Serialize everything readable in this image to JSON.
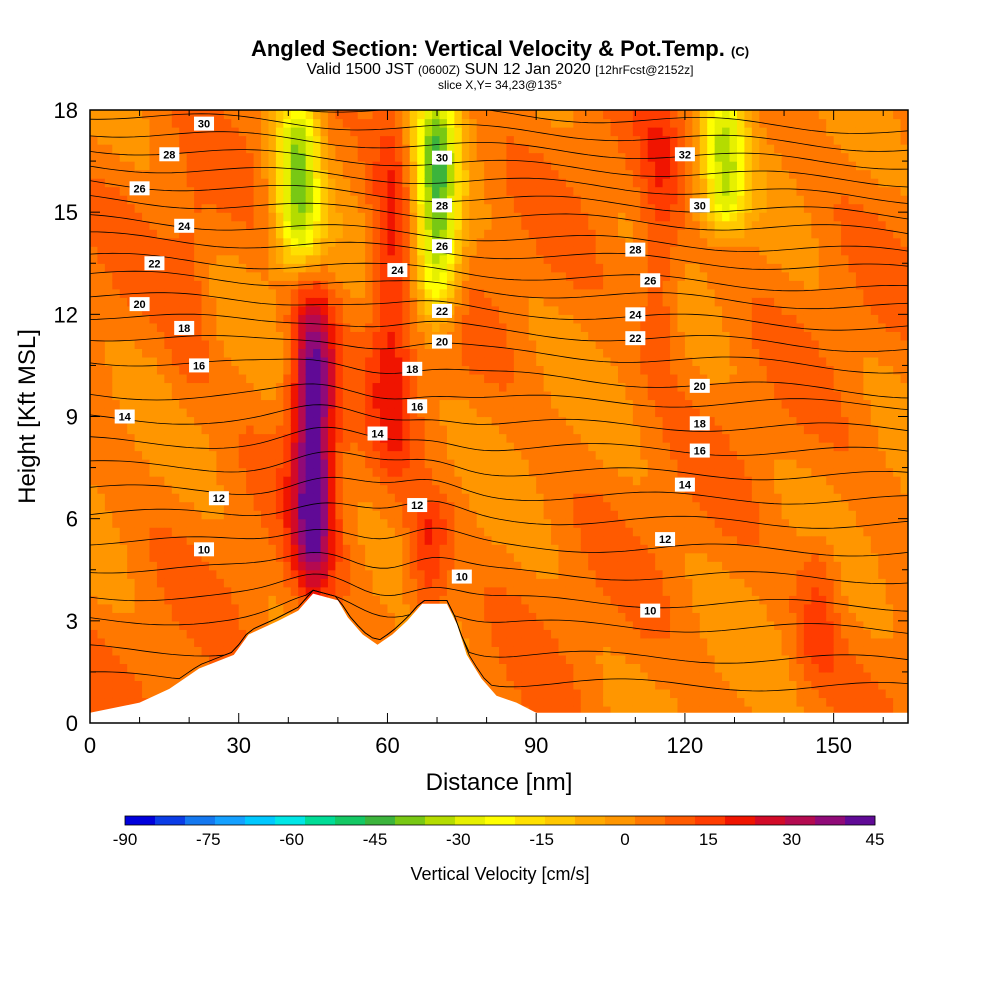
{
  "header": {
    "title": "Angled Section: Vertical Velocity & Pot.Temp.",
    "title_units": "(C)",
    "subtitle_left": "Valid 1500 JST",
    "subtitle_zulu": "(0600Z)",
    "subtitle_mid": "SUN 12 Jan 2020",
    "subtitle_fcst": "[12hrFcst@2152z]",
    "slice": "slice X,Y= 34,23@135°"
  },
  "chart_data": {
    "type": "heatmap",
    "title": "Angled Section: Vertical Velocity & Pot.Temp. (C)",
    "xlabel": "Distance [nm]",
    "ylabel": "Height [Kft MSL]",
    "xlim": [
      0,
      165
    ],
    "ylim": [
      0,
      18
    ],
    "x_ticks": [
      0,
      30,
      60,
      90,
      120,
      150
    ],
    "y_ticks": [
      0,
      3,
      6,
      9,
      12,
      15,
      18
    ],
    "colorbar": {
      "label": "Vertical Velocity [cm/s]",
      "tick_labels": [
        "-90",
        "-75",
        "-60",
        "-45",
        "-30",
        "-15",
        "0",
        "15",
        "30",
        "45"
      ],
      "colors": [
        "#0000dc",
        "#0a3ce6",
        "#1478f0",
        "#14a0ff",
        "#00c8ff",
        "#00e6e6",
        "#00dc96",
        "#14c864",
        "#3cb43c",
        "#78c814",
        "#b4dc00",
        "#e6f000",
        "#ffff00",
        "#ffe000",
        "#ffc800",
        "#ffaa00",
        "#ff9600",
        "#ff7800",
        "#ff5a00",
        "#ff3c00",
        "#f01400",
        "#d20a28",
        "#b40a50",
        "#900a78",
        "#600a96"
      ]
    },
    "velocity_features": [
      {
        "kind": "updraft",
        "x": 45,
        "z_range": [
          4.5,
          12
        ],
        "peak_cm_s": 45
      },
      {
        "kind": "updraft",
        "x": 61,
        "z_range": [
          8,
          18
        ],
        "peak_cm_s": 20
      },
      {
        "kind": "updraft",
        "x": 68,
        "z_range": [
          3.8,
          6
        ],
        "peak_cm_s": 20
      },
      {
        "kind": "updraft",
        "x": 115,
        "z_range": [
          11,
          18
        ],
        "peak_cm_s": 15
      },
      {
        "kind": "updraft",
        "x": 20,
        "z_range": [
          10,
          15
        ],
        "peak_cm_s": 10
      },
      {
        "kind": "updraft",
        "x": 147,
        "z_range": [
          2,
          5
        ],
        "peak_cm_s": 15
      },
      {
        "kind": "downdraft",
        "x": 70,
        "z_range": [
          12.5,
          18
        ],
        "peak_cm_s": -40
      },
      {
        "kind": "downdraft",
        "x": 42,
        "z_range": [
          14,
          18
        ],
        "peak_cm_s": -35
      },
      {
        "kind": "downdraft",
        "x": 128,
        "z_range": [
          15,
          18
        ],
        "peak_cm_s": -30
      }
    ],
    "isentropes": {
      "label": "Pot.Temp. (C)",
      "labels_shown": [
        {
          "text": "30",
          "x": 23,
          "z": 17.6
        },
        {
          "text": "28",
          "x": 16,
          "z": 16.7
        },
        {
          "text": "26",
          "x": 10,
          "z": 15.7
        },
        {
          "text": "24",
          "x": 19,
          "z": 14.6
        },
        {
          "text": "22",
          "x": 13,
          "z": 13.5
        },
        {
          "text": "20",
          "x": 10,
          "z": 12.3
        },
        {
          "text": "18",
          "x": 19,
          "z": 11.6
        },
        {
          "text": "16",
          "x": 22,
          "z": 10.5
        },
        {
          "text": "14",
          "x": 7,
          "z": 9.0
        },
        {
          "text": "12",
          "x": 26,
          "z": 6.6
        },
        {
          "text": "10",
          "x": 23,
          "z": 5.1
        },
        {
          "text": "30",
          "x": 71,
          "z": 16.6
        },
        {
          "text": "28",
          "x": 71,
          "z": 15.2
        },
        {
          "text": "26",
          "x": 71,
          "z": 14.0
        },
        {
          "text": "24",
          "x": 62,
          "z": 13.3
        },
        {
          "text": "22",
          "x": 71,
          "z": 12.1
        },
        {
          "text": "20",
          "x": 71,
          "z": 11.2
        },
        {
          "text": "18",
          "x": 65,
          "z": 10.4
        },
        {
          "text": "16",
          "x": 66,
          "z": 9.3
        },
        {
          "text": "14",
          "x": 58,
          "z": 8.5
        },
        {
          "text": "12",
          "x": 66,
          "z": 6.4
        },
        {
          "text": "10",
          "x": 75,
          "z": 4.3
        },
        {
          "text": "32",
          "x": 120,
          "z": 16.7
        },
        {
          "text": "30",
          "x": 123,
          "z": 15.2
        },
        {
          "text": "28",
          "x": 110,
          "z": 13.9
        },
        {
          "text": "26",
          "x": 113,
          "z": 13.0
        },
        {
          "text": "24",
          "x": 110,
          "z": 12.0
        },
        {
          "text": "22",
          "x": 110,
          "z": 11.3
        },
        {
          "text": "20",
          "x": 123,
          "z": 9.9
        },
        {
          "text": "18",
          "x": 123,
          "z": 8.8
        },
        {
          "text": "16",
          "x": 123,
          "z": 8.0
        },
        {
          "text": "14",
          "x": 120,
          "z": 7.0
        },
        {
          "text": "12",
          "x": 116,
          "z": 5.4
        },
        {
          "text": "10",
          "x": 113,
          "z": 3.3
        }
      ]
    },
    "terrain": {
      "description_points": [
        [
          0,
          0.3
        ],
        [
          10,
          0.6
        ],
        [
          16,
          1.0
        ],
        [
          19,
          1.3
        ],
        [
          22,
          1.6
        ],
        [
          29,
          2.0
        ],
        [
          32,
          2.6
        ],
        [
          38,
          3.0
        ],
        [
          42,
          3.3
        ],
        [
          45,
          3.8
        ],
        [
          50,
          3.6
        ],
        [
          52,
          3.1
        ],
        [
          55,
          2.6
        ],
        [
          58,
          2.3
        ],
        [
          61,
          2.6
        ],
        [
          64,
          3.0
        ],
        [
          67,
          3.5
        ],
        [
          72,
          3.5
        ],
        [
          74,
          2.9
        ],
        [
          76,
          2.0
        ],
        [
          79,
          1.3
        ],
        [
          82,
          0.8
        ],
        [
          86,
          0.6
        ],
        [
          90,
          0.3
        ],
        [
          165,
          0.3
        ]
      ]
    }
  }
}
